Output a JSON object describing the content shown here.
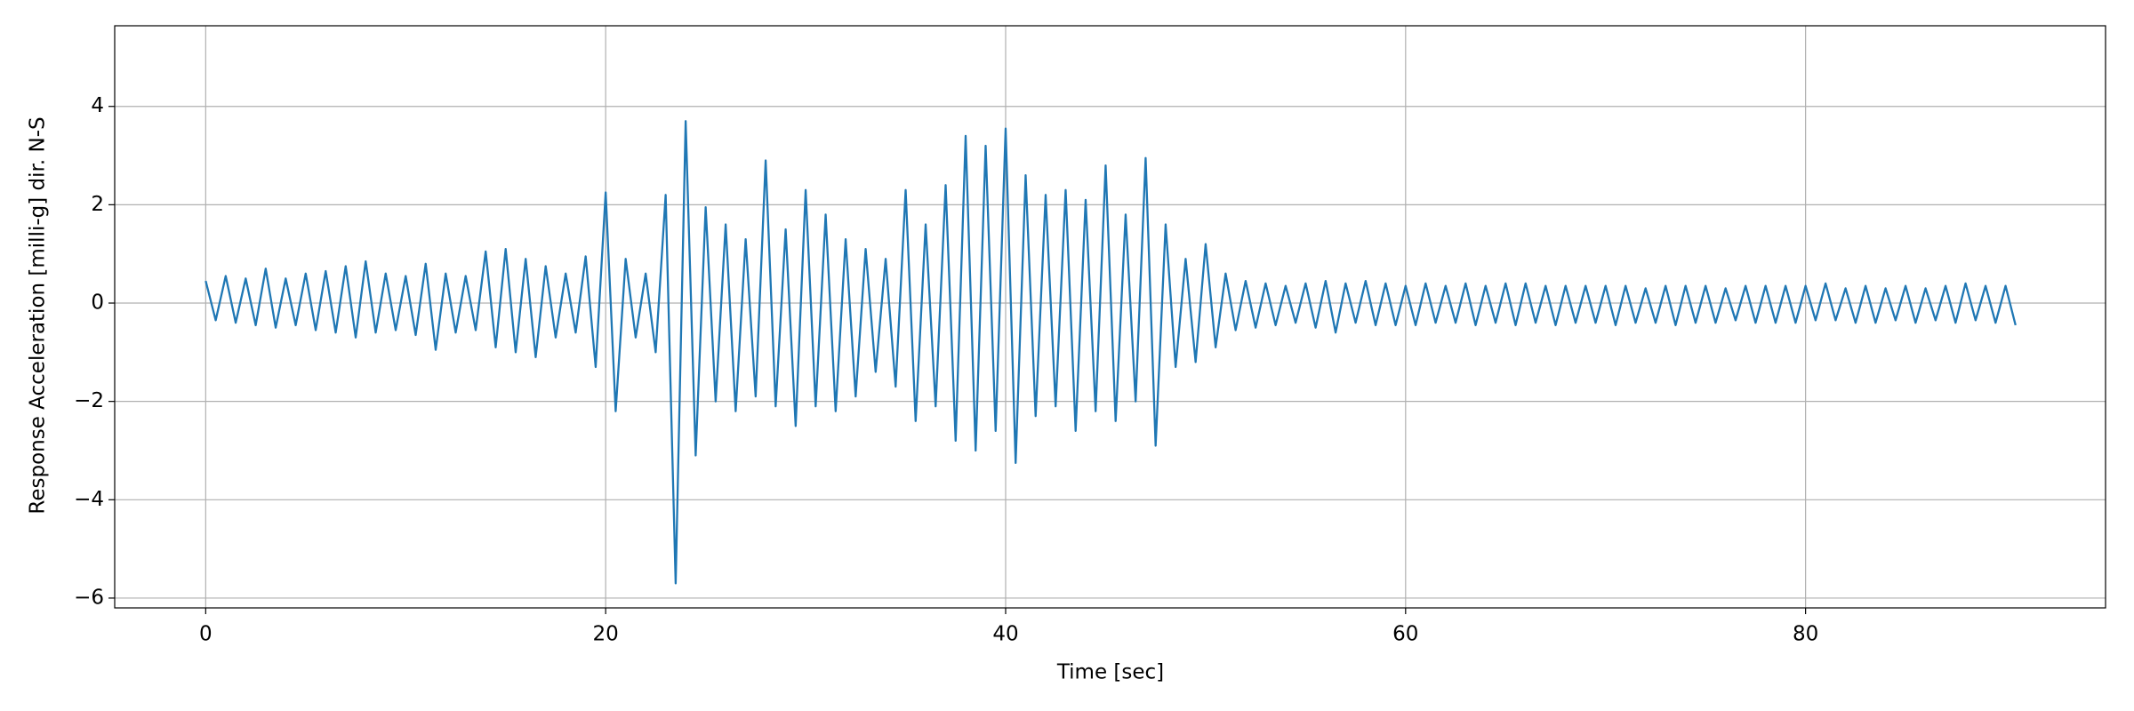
{
  "chart_data": {
    "type": "line",
    "xlabel": "Time [sec]",
    "ylabel": "Response Acceleration [milli-g] dir. N-S",
    "grid": true,
    "xlim": [
      -4.55,
      95.0
    ],
    "ylim": [
      -6.2,
      5.64
    ],
    "xticks": [
      0,
      20,
      40,
      60,
      80
    ],
    "yticks": [
      {
        "value": -6,
        "label": "−6"
      },
      {
        "value": -4,
        "label": "−4"
      },
      {
        "value": -2,
        "label": "−2"
      },
      0,
      2,
      4
    ],
    "x": [
      0,
      0.5,
      1,
      1.5,
      2,
      2.5,
      3,
      3.5,
      4,
      4.5,
      5,
      5.5,
      6,
      6.5,
      7,
      7.5,
      8,
      8.5,
      9,
      9.5,
      10,
      10.5,
      11,
      11.5,
      12,
      12.5,
      13,
      13.5,
      14,
      14.5,
      15,
      15.5,
      16,
      16.5,
      17,
      17.5,
      18,
      18.5,
      19,
      19.5,
      20,
      20.5,
      21,
      21.5,
      22,
      22.5,
      23,
      23.5,
      24,
      24.5,
      25,
      25.5,
      26,
      26.5,
      27,
      27.5,
      28,
      28.5,
      29,
      29.5,
      30,
      30.5,
      31,
      31.5,
      32,
      32.5,
      33,
      33.5,
      34,
      34.5,
      35,
      35.5,
      36,
      36.5,
      37,
      37.5,
      38,
      38.5,
      39,
      39.5,
      40,
      40.5,
      41,
      41.5,
      42,
      42.5,
      43,
      43.5,
      44,
      44.5,
      45,
      45.5,
      46,
      46.5,
      47,
      47.5,
      48,
      48.5,
      49,
      49.5,
      50,
      50.5,
      51,
      51.5,
      52,
      52.5,
      53,
      53.5,
      54,
      54.5,
      55,
      55.5,
      56,
      56.5,
      57,
      57.5,
      58,
      58.5,
      59,
      59.5,
      60,
      60.5,
      61,
      61.5,
      62,
      62.5,
      63,
      63.5,
      64,
      64.5,
      65,
      65.5,
      66,
      66.5,
      67,
      67.5,
      68,
      68.5,
      69,
      69.5,
      70,
      70.5,
      71,
      71.5,
      72,
      72.5,
      73,
      73.5,
      74,
      74.5,
      75,
      75.5,
      76,
      76.5,
      77,
      77.5,
      78,
      78.5,
      79,
      79.5,
      80,
      80.5,
      81,
      81.5,
      82,
      82.5,
      83,
      83.5,
      84,
      84.5,
      85,
      85.5,
      86,
      86.5,
      87,
      87.5,
      88,
      88.5,
      89,
      89.5,
      90,
      90.5
    ],
    "series": [
      {
        "color": "#1f77b4",
        "values": [
          0.45,
          -0.35,
          0.55,
          -0.4,
          0.5,
          -0.45,
          0.7,
          -0.5,
          0.5,
          -0.45,
          0.6,
          -0.55,
          0.65,
          -0.6,
          0.75,
          -0.7,
          0.85,
          -0.6,
          0.6,
          -0.55,
          0.55,
          -0.65,
          0.8,
          -0.95,
          0.6,
          -0.6,
          0.55,
          -0.55,
          1.05,
          -0.9,
          1.1,
          -1.0,
          0.9,
          -1.1,
          0.75,
          -0.7,
          0.6,
          -0.6,
          0.95,
          -1.3,
          2.25,
          -2.2,
          0.9,
          -0.7,
          0.6,
          -1.0,
          2.2,
          -5.7,
          3.7,
          -3.1,
          1.95,
          -2.0,
          1.6,
          -2.2,
          1.3,
          -1.9,
          2.9,
          -2.1,
          1.5,
          -2.5,
          2.3,
          -2.1,
          1.8,
          -2.2,
          1.3,
          -1.9,
          1.1,
          -1.4,
          0.9,
          -1.7,
          2.3,
          -2.4,
          1.6,
          -2.1,
          2.4,
          -2.8,
          3.4,
          -3.0,
          3.2,
          -2.6,
          3.55,
          -3.25,
          2.6,
          -2.3,
          2.2,
          -2.1,
          2.3,
          -2.6,
          2.1,
          -2.2,
          2.8,
          -2.4,
          1.8,
          -2.0,
          2.95,
          -2.9,
          1.6,
          -1.3,
          0.9,
          -1.2,
          1.2,
          -0.9,
          0.6,
          -0.55,
          0.45,
          -0.5,
          0.4,
          -0.45,
          0.35,
          -0.4,
          0.4,
          -0.5,
          0.45,
          -0.6,
          0.4,
          -0.4,
          0.45,
          -0.45,
          0.4,
          -0.45,
          0.35,
          -0.45,
          0.4,
          -0.4,
          0.35,
          -0.4,
          0.4,
          -0.45,
          0.35,
          -0.4,
          0.4,
          -0.45,
          0.4,
          -0.4,
          0.35,
          -0.45,
          0.35,
          -0.4,
          0.35,
          -0.4,
          0.35,
          -0.45,
          0.35,
          -0.4,
          0.3,
          -0.4,
          0.35,
          -0.45,
          0.35,
          -0.4,
          0.35,
          -0.4,
          0.3,
          -0.35,
          0.35,
          -0.4,
          0.35,
          -0.4,
          0.35,
          -0.4,
          0.35,
          -0.35,
          0.4,
          -0.35,
          0.3,
          -0.4,
          0.35,
          -0.4,
          0.3,
          -0.35,
          0.35,
          -0.4,
          0.3,
          -0.35,
          0.35,
          -0.4,
          0.4,
          -0.35,
          0.35,
          -0.4,
          0.35,
          -0.45
        ]
      }
    ]
  }
}
